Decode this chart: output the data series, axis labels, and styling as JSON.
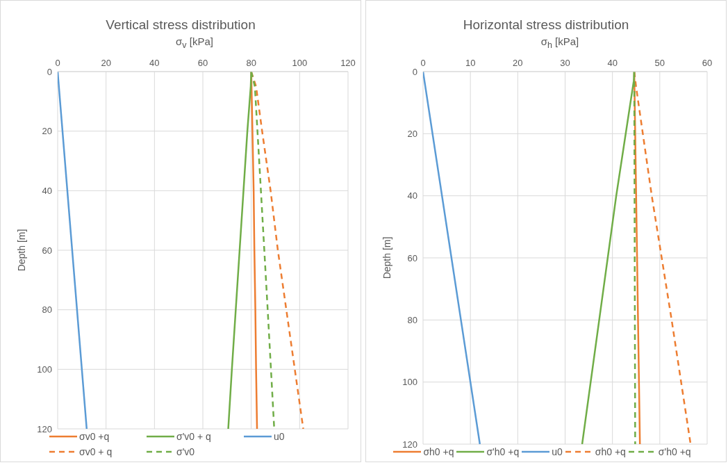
{
  "chart_data": [
    {
      "type": "line",
      "title": "Vertical stress distribution",
      "xlabel": "σ$_{v}$ [kPa]",
      "ylabel": "Depth [m]",
      "orientation": "horizontal",
      "xlim": [
        0,
        120
      ],
      "xticks": [
        0,
        20,
        40,
        60,
        80,
        100,
        120
      ],
      "ylim": [
        120,
        0
      ],
      "yticks": [
        0,
        20,
        40,
        60,
        80,
        100,
        120
      ],
      "grid": true,
      "legend": "bottom",
      "marker": "none",
      "series": [
        {
          "name": "σv0 +q",
          "color": "#ed7d31",
          "line_style": "solid",
          "x": [
            0,
            20,
            40,
            60,
            80,
            100,
            120
          ],
          "values": [
            80,
            80.5,
            81,
            81.3,
            81.7,
            82,
            82.4
          ]
        },
        {
          "name": "σ'v0 + q",
          "color": "#70ad47",
          "line_style": "solid",
          "x": [
            0,
            5,
            20,
            40,
            60,
            80,
            100,
            120
          ],
          "values": [
            80,
            79.8,
            78.4,
            76.8,
            75.2,
            73.6,
            72,
            70.5
          ]
        },
        {
          "name": "u0",
          "color": "#5b9bd5",
          "line_style": "solid",
          "x": [
            0,
            120
          ],
          "values": [
            0,
            12
          ]
        },
        {
          "name": "σv0 + q",
          "color": "#ed7d31",
          "line_style": "dashed",
          "x": [
            0,
            5,
            20,
            40,
            60,
            80,
            100,
            120
          ],
          "values": [
            80,
            82,
            84.5,
            88,
            91,
            94.5,
            98,
            101.5
          ]
        },
        {
          "name": "σ'v0",
          "color": "#70ad47",
          "line_style": "dashed",
          "x": [
            0,
            5,
            40,
            80,
            120
          ],
          "values": [
            80,
            81.5,
            84,
            86.8,
            89.5
          ]
        }
      ]
    },
    {
      "type": "line",
      "title": "Horizontal stress distribution",
      "xlabel": "σ$_{h}$ [kPa]",
      "ylabel": "Depth [m]",
      "orientation": "horizontal",
      "xlim": [
        0,
        60
      ],
      "xticks": [
        0,
        10,
        20,
        30,
        40,
        50,
        60
      ],
      "ylim": [
        120,
        0
      ],
      "yticks": [
        0,
        20,
        40,
        60,
        80,
        100,
        120
      ],
      "grid": true,
      "legend": "bottom",
      "marker": "none",
      "series": [
        {
          "name": "σh0 +q",
          "color": "#ed7d31",
          "line_style": "solid",
          "x": [
            0,
            40,
            80,
            120
          ],
          "values": [
            44.6,
            45,
            45.4,
            45.8
          ]
        },
        {
          "name": "σ'h0 +q",
          "color": "#70ad47",
          "line_style": "solid",
          "x": [
            0,
            3,
            40,
            80,
            120
          ],
          "values": [
            44.6,
            44.5,
            40.8,
            37.2,
            33.6
          ]
        },
        {
          "name": "u0",
          "color": "#5b9bd5",
          "line_style": "solid",
          "x": [
            0,
            120
          ],
          "values": [
            0,
            12
          ]
        },
        {
          "name": "σh0 +q",
          "color": "#ed7d31",
          "line_style": "dashed",
          "x": [
            0,
            5,
            40,
            80,
            120
          ],
          "values": [
            44.6,
            45,
            48.3,
            52.5,
            56.5
          ]
        },
        {
          "name": "σ'h0 +q",
          "color": "#70ad47",
          "line_style": "dashed",
          "x": [
            0,
            120
          ],
          "values": [
            44.6,
            44.8
          ]
        }
      ]
    }
  ]
}
